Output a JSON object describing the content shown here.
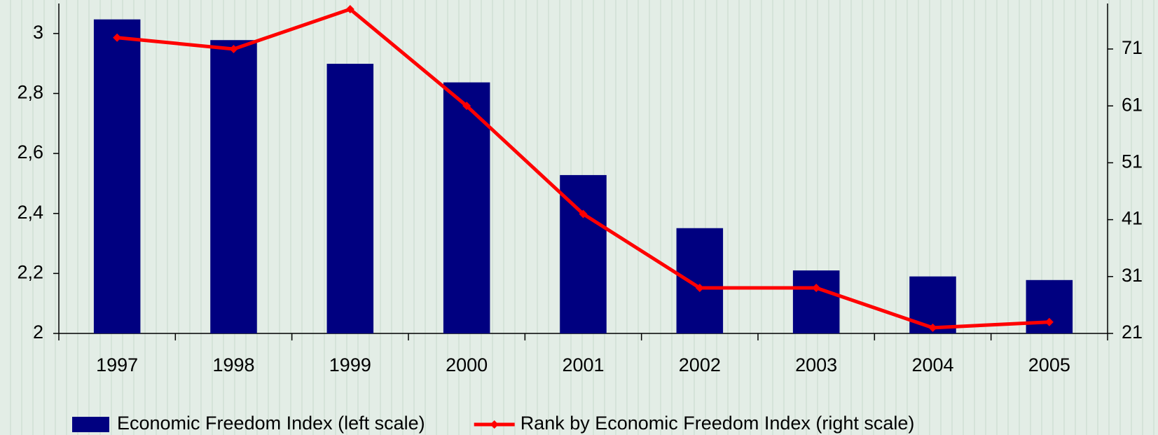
{
  "chart_data": {
    "type": "bar_line",
    "categories": [
      "1997",
      "1998",
      "1999",
      "2000",
      "2001",
      "2002",
      "2003",
      "2004",
      "2005"
    ],
    "series": [
      {
        "name": "Economic Freedom Index (left scale)",
        "type": "bar",
        "color": "#000080",
        "values": [
          3.047,
          2.978,
          2.899,
          2.837,
          2.528,
          2.351,
          2.21,
          2.19,
          2.178
        ]
      },
      {
        "name": "Rank by Economic Freedom Index (right scale)",
        "type": "line",
        "axis": "y2",
        "color": "#ff0000",
        "values": [
          73,
          71,
          78,
          61,
          42,
          29,
          29,
          22,
          23
        ]
      }
    ],
    "ylim": [
      2,
      3.1
    ],
    "yticks": [
      2,
      {
        "value": 2.2,
        "label": "2,2"
      },
      {
        "value": 2.4,
        "label": "2,4"
      },
      {
        "value": 2.6,
        "label": "2,6"
      },
      {
        "value": 2.8,
        "label": "2,8"
      },
      3
    ],
    "y2lim": [
      21,
      79
    ],
    "y2ticks": [
      21,
      31,
      41,
      51,
      61,
      71
    ],
    "legend": "bottom"
  }
}
